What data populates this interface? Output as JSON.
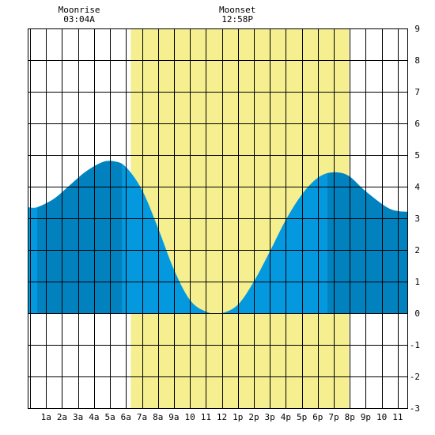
{
  "chart_data": {
    "type": "area",
    "title": "",
    "xlabel": "",
    "ylabel": "",
    "x_tick_labels": [
      "1a",
      "2a",
      "3a",
      "4a",
      "5a",
      "6a",
      "7a",
      "8a",
      "9a",
      "10",
      "11",
      "12",
      "1p",
      "2p",
      "3p",
      "4p",
      "5p",
      "6p",
      "7p",
      "8p",
      "9p",
      "10",
      "11"
    ],
    "xlim": [
      -0.15,
      23.65
    ],
    "ylim": [
      -3,
      9
    ],
    "y_ticks": [
      -3,
      -2,
      -1,
      0,
      1,
      2,
      3,
      4,
      5,
      6,
      7,
      8,
      9
    ],
    "grid": true,
    "daylight": {
      "start_hour": 6.3,
      "end_hour": 19.95,
      "color": "#f5ef8f"
    },
    "moon_events": [
      {
        "label": "Moonrise",
        "time": "03:04A",
        "hour": 3.07
      },
      {
        "label": "Moonset",
        "time": "12:58P",
        "hour": 12.97
      }
    ],
    "series": [
      {
        "points": [
          [
            -0.15,
            3.35
          ],
          [
            0.45,
            3.35
          ],
          [
            1.5,
            3.62
          ],
          [
            2.5,
            4.05
          ],
          [
            3.5,
            4.48
          ],
          [
            4.5,
            4.77
          ],
          [
            5.25,
            4.8
          ],
          [
            6.0,
            4.62
          ],
          [
            7.0,
            3.9
          ],
          [
            8.0,
            2.7
          ],
          [
            9.0,
            1.38
          ],
          [
            10.0,
            0.42
          ],
          [
            11.0,
            0.05
          ],
          [
            11.95,
            0.0
          ],
          [
            13.0,
            0.27
          ],
          [
            14.0,
            1.0
          ],
          [
            15.0,
            1.95
          ],
          [
            16.0,
            2.95
          ],
          [
            17.0,
            3.75
          ],
          [
            18.0,
            4.28
          ],
          [
            18.9,
            4.45
          ],
          [
            19.9,
            4.35
          ],
          [
            21.0,
            3.85
          ],
          [
            22.5,
            3.3
          ],
          [
            23.65,
            3.2
          ]
        ]
      }
    ],
    "shade_bands": [
      [
        0.45,
        5.75
      ],
      [
        18.6,
        23.65
      ]
    ],
    "colors": {
      "water": "#0499df",
      "water_dark": "#0182bf",
      "grid": "#000000",
      "background": "#ffffff"
    }
  }
}
